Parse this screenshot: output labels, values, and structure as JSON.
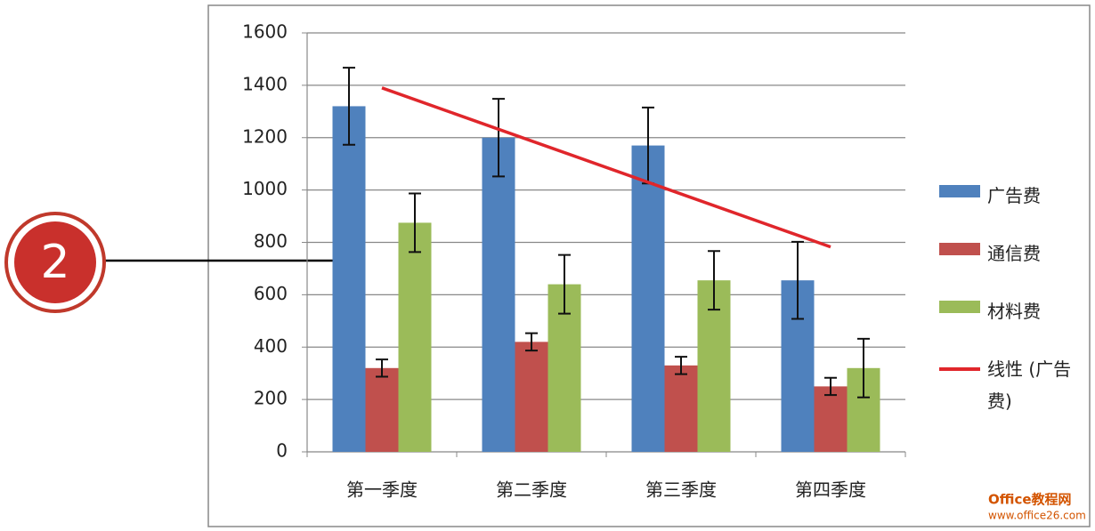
{
  "chart_data": {
    "type": "bar",
    "categories": [
      "第一季度",
      "第二季度",
      "第三季度",
      "第四季度"
    ],
    "series": [
      {
        "name": "广告费",
        "color": "#4f81bd",
        "values": [
          1320,
          1200,
          1170,
          655
        ],
        "errors": [
          147,
          148,
          145,
          147
        ]
      },
      {
        "name": "通信费",
        "color": "#c0504d",
        "values": [
          320,
          420,
          330,
          250
        ],
        "errors": [
          33,
          33,
          33,
          33
        ]
      },
      {
        "name": "材料费",
        "color": "#9bbb59",
        "values": [
          875,
          640,
          655,
          320
        ],
        "errors": [
          112,
          112,
          112,
          112
        ]
      }
    ],
    "trendline": {
      "name": "线性 (广告费)",
      "color": "#e0262b",
      "values": [
        1390,
        1187.5,
        985,
        782.5
      ]
    },
    "ylim": [
      0,
      1600
    ],
    "yticks": [
      0,
      200,
      400,
      600,
      800,
      1000,
      1200,
      1400,
      1600
    ],
    "grid": true,
    "legend": "right",
    "annotation": "2",
    "watermark": [
      "Office教程网",
      "www.office26.com"
    ]
  }
}
